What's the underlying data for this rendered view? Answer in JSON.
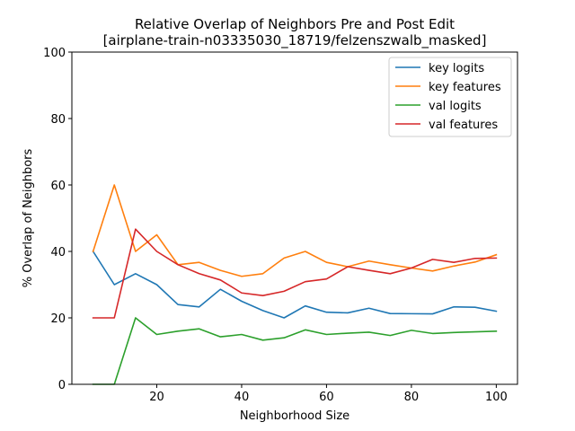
{
  "chart_data": {
    "type": "line",
    "title_line1": "Relative Overlap of Neighbors Pre and Post Edit",
    "title_line2": "[airplane-train-n03335030_18719/felzenszwalb_masked]",
    "xlabel": "Neighborhood Size",
    "ylabel": "% Overlap of Neighbors",
    "xlim": [
      0,
      105
    ],
    "ylim": [
      0,
      100
    ],
    "xticks": [
      20,
      40,
      60,
      80,
      100
    ],
    "yticks": [
      0,
      20,
      40,
      60,
      80,
      100
    ],
    "grid": false,
    "legend_position": "top-right",
    "x": [
      5,
      10,
      15,
      20,
      25,
      30,
      35,
      40,
      45,
      50,
      55,
      60,
      65,
      70,
      75,
      80,
      85,
      90,
      95,
      100
    ],
    "series": [
      {
        "name": "key logits",
        "color": "#1f77b4",
        "values": [
          40,
          30,
          33.3,
          30,
          24,
          23.3,
          28.6,
          25,
          22.2,
          20,
          23.6,
          21.7,
          21.5,
          22.9,
          21.3,
          21.25,
          21.2,
          23.3,
          23.2,
          22
        ]
      },
      {
        "name": "key features",
        "color": "#ff7f0e",
        "values": [
          40,
          60,
          40,
          45,
          36,
          36.7,
          34.3,
          32.5,
          33.3,
          38,
          40,
          36.7,
          35.4,
          37.1,
          36,
          35,
          34.1,
          35.6,
          36.8,
          39
        ]
      },
      {
        "name": "val logits",
        "color": "#2ca02c",
        "values": [
          0,
          0,
          20,
          15,
          16,
          16.7,
          14.3,
          15,
          13.3,
          14,
          16.4,
          15,
          15.4,
          15.7,
          14.7,
          16.25,
          15.3,
          15.6,
          15.8,
          16
        ]
      },
      {
        "name": "val features",
        "color": "#d62728",
        "values": [
          20,
          20,
          46.7,
          40,
          36,
          33.3,
          31.4,
          27.5,
          26.7,
          28,
          30.9,
          31.7,
          35.4,
          34.3,
          33.3,
          35,
          37.6,
          36.7,
          37.9,
          38
        ]
      }
    ]
  }
}
